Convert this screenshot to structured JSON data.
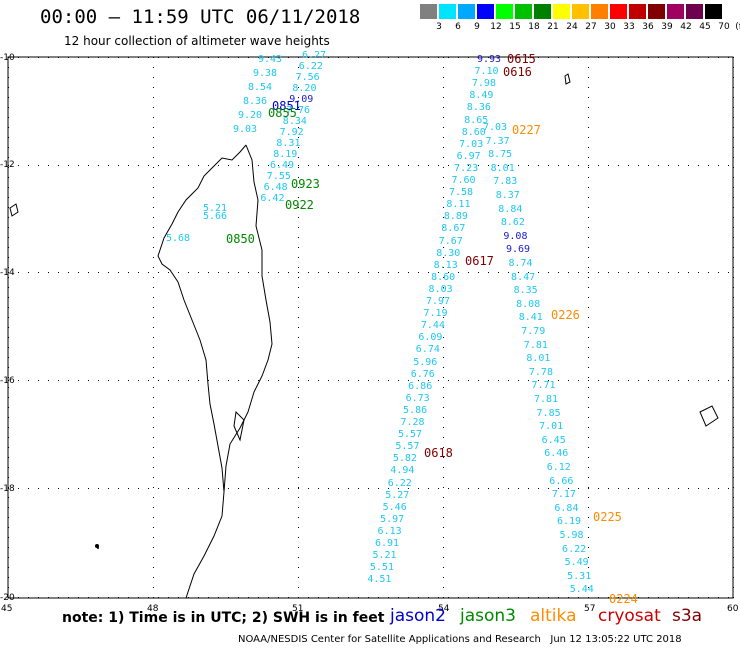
{
  "header": {
    "title": "00:00 – 11:59 UTC 06/11/2018",
    "subtitle": "12 hour collection of altimeter wave heights"
  },
  "colorbar": {
    "unit": "(ft)",
    "labels": [
      "3",
      "6",
      "9",
      "12",
      "15",
      "18",
      "21",
      "24",
      "27",
      "30",
      "33",
      "36",
      "39",
      "42",
      "45",
      "70"
    ],
    "colors": [
      "#808080",
      "#00e5ff",
      "#00a8ff",
      "#0000ff",
      "#00ff00",
      "#00c000",
      "#008000",
      "#ffff00",
      "#ffc000",
      "#ff8000",
      "#ff0000",
      "#c00000",
      "#800000",
      "#a00060",
      "#6e0050",
      "#000000"
    ]
  },
  "map": {
    "lon_ticks": [
      "45",
      "48",
      "51",
      "54",
      "57",
      "60"
    ],
    "lat_ticks": [
      "-10",
      "-12",
      "-14",
      "-16",
      "-18",
      "-20"
    ],
    "lon_range": [
      45,
      60
    ],
    "lat_range": [
      -20,
      -10
    ]
  },
  "tracks": {
    "west_a": [
      "6.27",
      "6.22",
      "7.56",
      "8.20",
      "9.09",
      "7.76",
      "8.34",
      "7.92",
      "8.31",
      "8.19",
      "6.49",
      "7.55",
      "6.48",
      "6.42"
    ],
    "west_b": [
      "9.43",
      "9.38",
      "8.54",
      "8.36",
      "9.20",
      "9.03"
    ],
    "central": [
      "9.93",
      "7.10",
      "7.98",
      "8.49",
      "8.36",
      "8.65",
      "8.60",
      "7.03",
      "6.97",
      "7.23",
      "7.60",
      "7.58",
      "8.11",
      "8.89",
      "8.67",
      "7.67",
      "8.30",
      "8.13",
      "8.60",
      "8.03",
      "7.97",
      "7.19",
      "7.44",
      "6.09",
      "6.74",
      "5.96",
      "6.76",
      "6.86",
      "6.73",
      "5.86",
      "7.28",
      "5.57",
      "5.57",
      "5.82",
      "4.94",
      "6.22",
      "5.27",
      "5.46",
      "5.97",
      "6.13",
      "6.91",
      "5.21",
      "5.51",
      "4.51"
    ],
    "east": [
      "7.03",
      "7.37",
      "8.75",
      "8.01",
      "7.83",
      "8.37",
      "8.84",
      "8.62",
      "9.08",
      "9.69",
      "8.74",
      "8.47",
      "8.35",
      "8.08",
      "8.41",
      "7.79",
      "7.81",
      "8.01",
      "7.78",
      "7.71",
      "7.81",
      "7.85",
      "7.01",
      "6.45",
      "6.46",
      "6.12",
      "6.66",
      "7.17",
      "6.84",
      "6.19",
      "5.98",
      "6.22",
      "5.49",
      "5.31",
      "5.44"
    ],
    "coast": [
      "5.21",
      "5.66",
      "5.68"
    ]
  },
  "time_labels": {
    "t0615": "0615",
    "t0616": "0616",
    "t0617": "0617",
    "t0618": "0618",
    "t0227": "0227",
    "t0226": "0226",
    "t0225": "0225",
    "t0224": "0224",
    "t0923": "0923",
    "t0922": "0922",
    "t0850": "0850",
    "t0851": "0851",
    "t0855": "0855"
  },
  "footer": {
    "note": "note: 1) Time is in UTC; 2) SWH is in feet",
    "sat_jason2": "jason2",
    "sat_jason3": "jason3",
    "sat_altika": "altika",
    "sat_cryosat": "cryosat",
    "sat_s3a": "s3a",
    "sat_colors": {
      "jason2": "#0000cc",
      "jason3": "#008800",
      "altika": "#ff8c00",
      "cryosat": "#cc0000",
      "s3a": "#800000"
    },
    "credit": "NOAA/NESDIS Center for Satellite Applications and Research   Jun 12 13:05:22 UTC 2018"
  }
}
